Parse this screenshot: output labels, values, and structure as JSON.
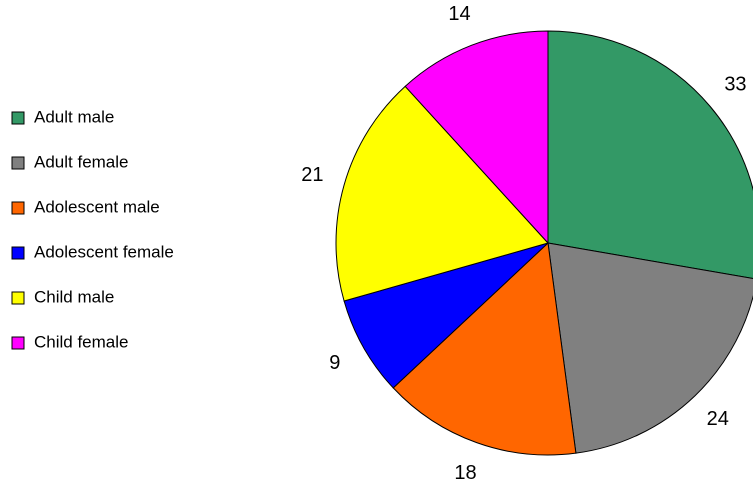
{
  "chart_data": {
    "type": "pie",
    "categories": [
      "Adult male",
      "Adult female",
      "Adolescent male",
      "Adolescent female",
      "Child male",
      "Child female"
    ],
    "values": [
      33,
      24,
      18,
      9,
      21,
      14
    ],
    "colors": [
      "#339966",
      "#808080",
      "#ff6600",
      "#0000ff",
      "#ffff00",
      "#ff00ff"
    ],
    "legend": "left"
  }
}
